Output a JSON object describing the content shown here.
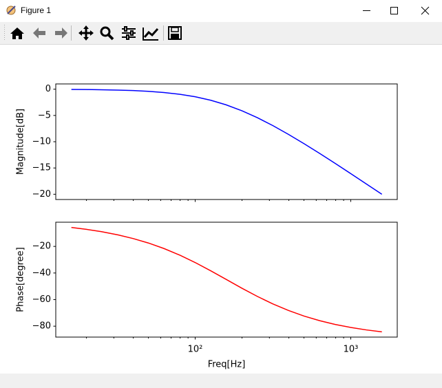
{
  "window": {
    "title": "Figure 1"
  },
  "chart_data": [
    {
      "type": "line",
      "ylabel": "Magnitude[dB]",
      "log_x": true,
      "x": [
        16,
        20,
        25,
        32,
        40,
        50,
        63,
        80,
        100,
        126,
        158,
        200,
        251,
        316,
        398,
        501,
        631,
        794,
        1000,
        1259,
        1585
      ],
      "series": [
        {
          "color": "#0000ff",
          "values": [
            -0.044,
            -0.068,
            -0.106,
            -0.172,
            -0.266,
            -0.409,
            -0.633,
            -0.979,
            -1.445,
            -2.113,
            -2.979,
            -4.115,
            -5.425,
            -6.939,
            -8.606,
            -10.378,
            -12.232,
            -14.132,
            -16.073,
            -18.034,
            -20.008
          ]
        }
      ],
      "xlim": [
        12.7,
        1990
      ],
      "ylim": [
        -21,
        1
      ],
      "xticks": [
        100,
        1000
      ],
      "xminorticks": [
        20,
        30,
        40,
        50,
        60,
        70,
        80,
        90,
        200,
        300,
        400,
        500,
        600,
        700,
        800,
        900
      ],
      "yticks": [
        0,
        {
          "value": -5,
          "label": "−5"
        },
        {
          "value": -10,
          "label": "−10"
        },
        {
          "value": -15,
          "label": "−15"
        },
        {
          "value": -20,
          "label": "−20"
        }
      ]
    },
    {
      "type": "line",
      "ylabel": "Phase[degree]",
      "xlabel": "Freq[Hz]",
      "log_x": true,
      "x": [
        16,
        20,
        25,
        32,
        40,
        50,
        63,
        80,
        100,
        126,
        158,
        200,
        251,
        316,
        398,
        501,
        631,
        794,
        1000,
        1259,
        1585
      ],
      "series": [
        {
          "color": "#ff0000",
          "values": [
            -5.74,
            -7.16,
            -8.93,
            -11.37,
            -14.11,
            -17.44,
            -21.59,
            -26.69,
            -32.14,
            -38.37,
            -44.79,
            -51.49,
            -57.62,
            -63.27,
            -68.21,
            -72.38,
            -75.84,
            -78.67,
            -80.96,
            -82.8,
            -84.27
          ]
        }
      ],
      "xlim": [
        12.7,
        1990
      ],
      "ylim": [
        -88.2,
        -1.8
      ],
      "xticks": [
        {
          "value": 100,
          "label": "10²"
        },
        {
          "value": 1000,
          "label": "10³"
        }
      ],
      "xminorticks": [
        20,
        30,
        40,
        50,
        60,
        70,
        80,
        90,
        200,
        300,
        400,
        500,
        600,
        700,
        800,
        900
      ],
      "yticks": [
        {
          "value": -20,
          "label": "−20"
        },
        {
          "value": -40,
          "label": "−40"
        },
        {
          "value": -60,
          "label": "−60"
        },
        {
          "value": -80,
          "label": "−80"
        }
      ]
    }
  ]
}
